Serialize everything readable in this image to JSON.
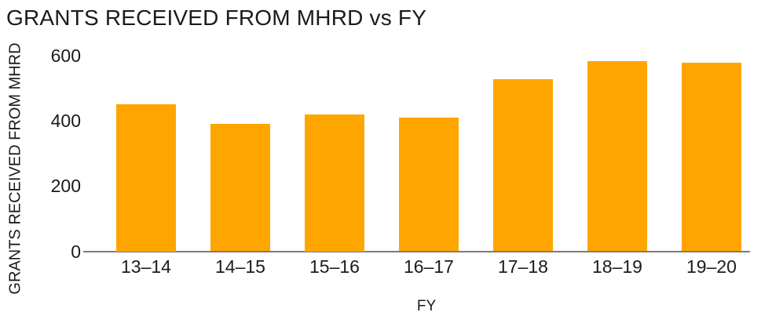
{
  "title": "GRANTS RECEIVED FROM MHRD vs FY",
  "chart_data": {
    "type": "bar",
    "title": "GRANTS RECEIVED FROM MHRD vs FY",
    "categories": [
      "13–14",
      "14–15",
      "15–16",
      "16–17",
      "17–18",
      "18–19",
      "19–20"
    ],
    "values": [
      450,
      391,
      420,
      409,
      526,
      581,
      577
    ],
    "xlabel": "FY",
    "ylabel": "GRANTS RECEIVED FROM MHRD",
    "yticks": [
      0,
      200,
      400,
      600
    ],
    "ylim": [
      0,
      600
    ],
    "grid": false,
    "legend": "none",
    "bar_color": "#FFA500",
    "axis_line_color": "#7b7b7b",
    "text_color": "#1b1b1b"
  }
}
